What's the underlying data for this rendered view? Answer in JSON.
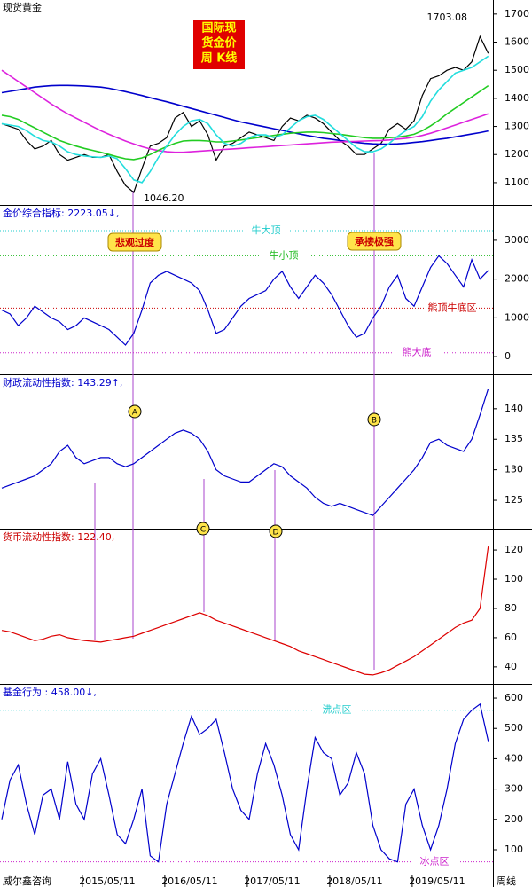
{
  "chart_data": [
    {
      "type": "line",
      "title": "现货黄金",
      "title_color": "#000000",
      "box_text": [
        "国际现",
        "货金价",
        "周 K线"
      ],
      "high_label": "1703.08",
      "low_label": "1046.20",
      "ylim": [
        1024,
        1750
      ],
      "yticks": [
        1100,
        1200,
        1300,
        1400,
        1500,
        1600,
        1700
      ],
      "series": [
        {
          "color": "#000000",
          "values": [
            1310,
            1300,
            1290,
            1250,
            1220,
            1230,
            1250,
            1200,
            1180,
            1190,
            1200,
            1190,
            1190,
            1200,
            1140,
            1090,
            1065,
            1150,
            1230,
            1240,
            1260,
            1330,
            1350,
            1300,
            1320,
            1270,
            1180,
            1230,
            1240,
            1260,
            1280,
            1270,
            1260,
            1250,
            1300,
            1330,
            1320,
            1340,
            1330,
            1310,
            1280,
            1250,
            1230,
            1200,
            1200,
            1220,
            1240,
            1290,
            1310,
            1290,
            1320,
            1410,
            1470,
            1480,
            1500,
            1510,
            1500,
            1530,
            1620,
            1560
          ]
        },
        {
          "color": "#0000cc",
          "values": [
            1420,
            1425,
            1430,
            1435,
            1440,
            1443,
            1445,
            1446,
            1446,
            1445,
            1444,
            1442,
            1440,
            1436,
            1430,
            1424,
            1417,
            1410,
            1402,
            1395,
            1388,
            1380,
            1372,
            1364,
            1356,
            1348,
            1340,
            1332,
            1324,
            1316,
            1310,
            1304,
            1298,
            1292,
            1286,
            1280,
            1274,
            1268,
            1263,
            1258,
            1254,
            1250,
            1246,
            1243,
            1240,
            1238,
            1237,
            1237,
            1238,
            1240,
            1243,
            1246,
            1250,
            1254,
            1258,
            1263,
            1268,
            1273,
            1278,
            1284
          ]
        },
        {
          "color": "#dd22dd",
          "values": [
            1500,
            1480,
            1460,
            1440,
            1420,
            1400,
            1380,
            1362,
            1345,
            1330,
            1315,
            1300,
            1285,
            1272,
            1260,
            1248,
            1238,
            1228,
            1220,
            1214,
            1210,
            1208,
            1208,
            1210,
            1212,
            1214,
            1216,
            1218,
            1220,
            1222,
            1224,
            1226,
            1228,
            1230,
            1232,
            1234,
            1236,
            1238,
            1240,
            1242,
            1244,
            1245,
            1246,
            1247,
            1248,
            1249,
            1250,
            1252,
            1255,
            1258,
            1262,
            1268,
            1276,
            1285,
            1295,
            1305,
            1315,
            1325,
            1335,
            1345
          ]
        },
        {
          "color": "#22cc22",
          "values": [
            1340,
            1335,
            1325,
            1310,
            1295,
            1280,
            1265,
            1250,
            1240,
            1230,
            1222,
            1215,
            1208,
            1200,
            1192,
            1185,
            1182,
            1188,
            1200,
            1215,
            1228,
            1240,
            1248,
            1250,
            1250,
            1248,
            1245,
            1245,
            1248,
            1252,
            1256,
            1260,
            1264,
            1268,
            1272,
            1276,
            1278,
            1280,
            1280,
            1278,
            1275,
            1272,
            1268,
            1264,
            1260,
            1258,
            1258,
            1260,
            1262,
            1266,
            1272,
            1285,
            1302,
            1322,
            1345,
            1365,
            1385,
            1405,
            1425,
            1445
          ]
        },
        {
          "color": "#22dddd",
          "values": [
            1310,
            1305,
            1300,
            1285,
            1265,
            1250,
            1245,
            1230,
            1210,
            1200,
            1195,
            1192,
            1190,
            1195,
            1185,
            1150,
            1110,
            1100,
            1140,
            1190,
            1230,
            1270,
            1300,
            1320,
            1325,
            1310,
            1270,
            1240,
            1230,
            1240,
            1260,
            1270,
            1270,
            1260,
            1270,
            1295,
            1320,
            1335,
            1340,
            1325,
            1300,
            1275,
            1250,
            1225,
            1210,
            1210,
            1220,
            1240,
            1265,
            1285,
            1300,
            1335,
            1390,
            1430,
            1460,
            1490,
            1500,
            1510,
            1530,
            1550
          ]
        }
      ]
    },
    {
      "type": "line",
      "title": "金价综合指标: 2223.05↓,",
      "title_color": "#0000cc",
      "callouts": [
        "悲观过度",
        "承接极强"
      ],
      "ylim": [
        -410,
        3890
      ],
      "yticks": [
        0,
        1000,
        2000,
        3000
      ],
      "reference_lines": [
        {
          "value": 3250,
          "label": "牛大顶",
          "color": "#22cccc"
        },
        {
          "value": 2600,
          "label": "牛小顶",
          "color": "#22bb22"
        },
        {
          "value": 1250,
          "label": "熊顶牛底区",
          "color": "#cc0000"
        },
        {
          "value": 100,
          "label": "熊大底",
          "color": "#cc22cc"
        }
      ],
      "series": [
        {
          "color": "#0000cc",
          "values": [
            1200,
            1100,
            800,
            1000,
            1300,
            1150,
            1000,
            900,
            700,
            800,
            1000,
            900,
            800,
            700,
            500,
            300,
            600,
            1200,
            1900,
            2100,
            2200,
            2100,
            2000,
            1900,
            1700,
            1200,
            600,
            700,
            1000,
            1300,
            1500,
            1600,
            1700,
            2000,
            2200,
            1800,
            1500,
            1800,
            2100,
            1900,
            1600,
            1200,
            800,
            500,
            600,
            1000,
            1300,
            1800,
            2100,
            1500,
            1300,
            1800,
            2300,
            2600,
            2400,
            2100,
            1800,
            2500,
            2000,
            2223.05
          ]
        }
      ]
    },
    {
      "type": "line",
      "title": "财政流动性指数: 143.29↑,",
      "title_color": "#0000cc",
      "markers": [
        "A",
        "B"
      ],
      "ylim": [
        120.5,
        145.5
      ],
      "yticks": [
        125,
        130,
        135,
        140
      ],
      "series": [
        {
          "color": "#0000cc",
          "values": [
            127,
            127.5,
            128,
            128.5,
            129,
            130,
            131,
            133,
            134,
            132,
            131,
            131.5,
            132,
            132,
            131,
            130.5,
            131,
            132,
            133,
            134,
            135,
            136,
            136.5,
            136,
            135,
            133,
            130,
            129,
            128.5,
            128,
            128,
            129,
            130,
            131,
            130.5,
            129,
            128,
            127,
            125.5,
            124.5,
            124,
            124.5,
            124,
            123.5,
            123,
            122.5,
            124,
            125.5,
            127,
            128.5,
            130,
            132,
            134.5,
            135,
            134,
            133.5,
            133,
            135,
            139,
            143.29
          ]
        }
      ]
    },
    {
      "type": "line",
      "title": "货币流动性指数: 122.40,",
      "title_color": "#cc0000",
      "markers": [
        "C",
        "D"
      ],
      "ylim": [
        29,
        134
      ],
      "yticks": [
        40,
        60,
        80,
        100,
        120
      ],
      "series": [
        {
          "color": "#dd0000",
          "values": [
            65,
            64,
            62,
            60,
            58,
            59,
            61,
            62,
            60,
            59,
            58,
            57.5,
            57,
            58,
            59,
            60,
            61,
            63,
            65,
            67,
            69,
            71,
            73,
            75,
            77,
            75,
            72,
            70,
            68,
            66,
            64,
            62,
            60,
            58,
            56,
            54,
            51,
            49,
            47,
            45,
            43,
            41,
            39,
            37,
            35,
            34.5,
            36,
            38,
            41,
            44,
            47,
            51,
            55,
            59,
            63,
            67,
            70,
            72,
            80,
            122.4
          ]
        }
      ]
    },
    {
      "type": "line",
      "title": "基金行为 : 458.00↓,",
      "title_color": "#0000cc",
      "ylim": [
        21,
        644
      ],
      "yticks": [
        100,
        200,
        300,
        400,
        500,
        600
      ],
      "reference_lines": [
        {
          "value": 560,
          "label": "沸点区",
          "color": "#22cccc"
        },
        {
          "value": 60,
          "label": "冰点区",
          "color": "#cc22cc"
        }
      ],
      "brand": "威尔鑫咨询",
      "period_label": "周线",
      "categories": [
        null,
        null,
        null,
        null,
        null,
        null,
        null,
        null,
        null,
        null,
        null,
        null,
        null,
        "2015/05/11",
        null,
        null,
        null,
        null,
        null,
        null,
        null,
        null,
        null,
        "2016/05/11",
        null,
        null,
        null,
        null,
        null,
        null,
        null,
        null,
        null,
        "2017/05/11",
        null,
        null,
        null,
        null,
        null,
        null,
        null,
        null,
        null,
        "2018/05/11",
        null,
        null,
        null,
        null,
        null,
        null,
        null,
        null,
        null,
        "2019/05/11",
        null,
        null,
        null,
        null,
        null,
        null
      ],
      "series": [
        {
          "color": "#0000cc",
          "values": [
            200,
            330,
            380,
            250,
            150,
            280,
            300,
            200,
            390,
            250,
            200,
            350,
            400,
            280,
            150,
            120,
            200,
            300,
            80,
            60,
            250,
            350,
            450,
            540,
            480,
            500,
            530,
            420,
            300,
            230,
            200,
            350,
            450,
            380,
            280,
            150,
            100,
            300,
            470,
            420,
            400,
            280,
            320,
            420,
            350,
            180,
            100,
            70,
            60,
            250,
            300,
            180,
            100,
            180,
            300,
            450,
            530,
            560,
            580,
            458
          ]
        }
      ]
    }
  ]
}
